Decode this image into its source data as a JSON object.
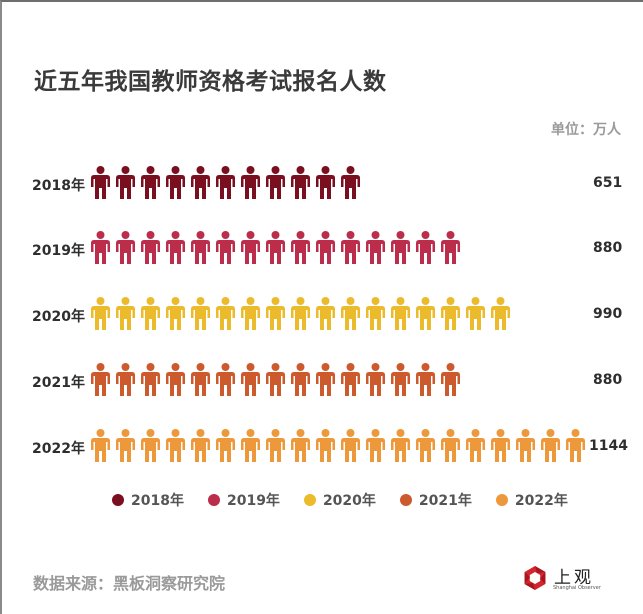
{
  "header": {
    "title": "近五年我国教师资格考试报名人数",
    "unit": "单位：万人"
  },
  "rows": [
    {
      "label": "2018年",
      "value": "651",
      "icons": 11,
      "color": "#7a0f1f"
    },
    {
      "label": "2019年",
      "value": "880",
      "icons": 15,
      "color": "#bb2d4b"
    },
    {
      "label": "2020年",
      "value": "990",
      "icons": 17,
      "color": "#ebbb2c"
    },
    {
      "label": "2021年",
      "value": "880",
      "icons": 15,
      "color": "#cc5a2d"
    },
    {
      "label": "2022年",
      "value": "1144",
      "icons": 20,
      "color": "#ed983a"
    }
  ],
  "legend": [
    {
      "label": "2018年",
      "color": "#7a0f1f"
    },
    {
      "label": "2019年",
      "color": "#bb2d4b"
    },
    {
      "label": "2020年",
      "color": "#ebbb2c"
    },
    {
      "label": "2021年",
      "color": "#cc5a2d"
    },
    {
      "label": "2022年",
      "color": "#ed983a"
    }
  ],
  "footer": {
    "source": "数据来源：黑板洞察研究院",
    "logo_text": "上观",
    "logo_subtext": "Shanghai Observer",
    "logo_color": "#d2262e"
  },
  "chart_data": {
    "type": "bar",
    "subtype": "pictograph",
    "title": "近五年我国教师资格考试报名人数",
    "unit": "万人",
    "categories": [
      "2018年",
      "2019年",
      "2020年",
      "2021年",
      "2022年"
    ],
    "values": [
      651,
      880,
      990,
      880,
      1144
    ],
    "icon_counts": [
      11,
      15,
      17,
      15,
      20
    ],
    "colors": [
      "#7a0f1f",
      "#bb2d4b",
      "#ebbb2c",
      "#cc5a2d",
      "#ed983a"
    ],
    "legend": [
      "2018年",
      "2019年",
      "2020年",
      "2021年",
      "2022年"
    ],
    "legend_position": "bottom",
    "xlabel": "",
    "ylabel": "",
    "grid": false,
    "source": "数据来源：黑板洞察研究院"
  }
}
